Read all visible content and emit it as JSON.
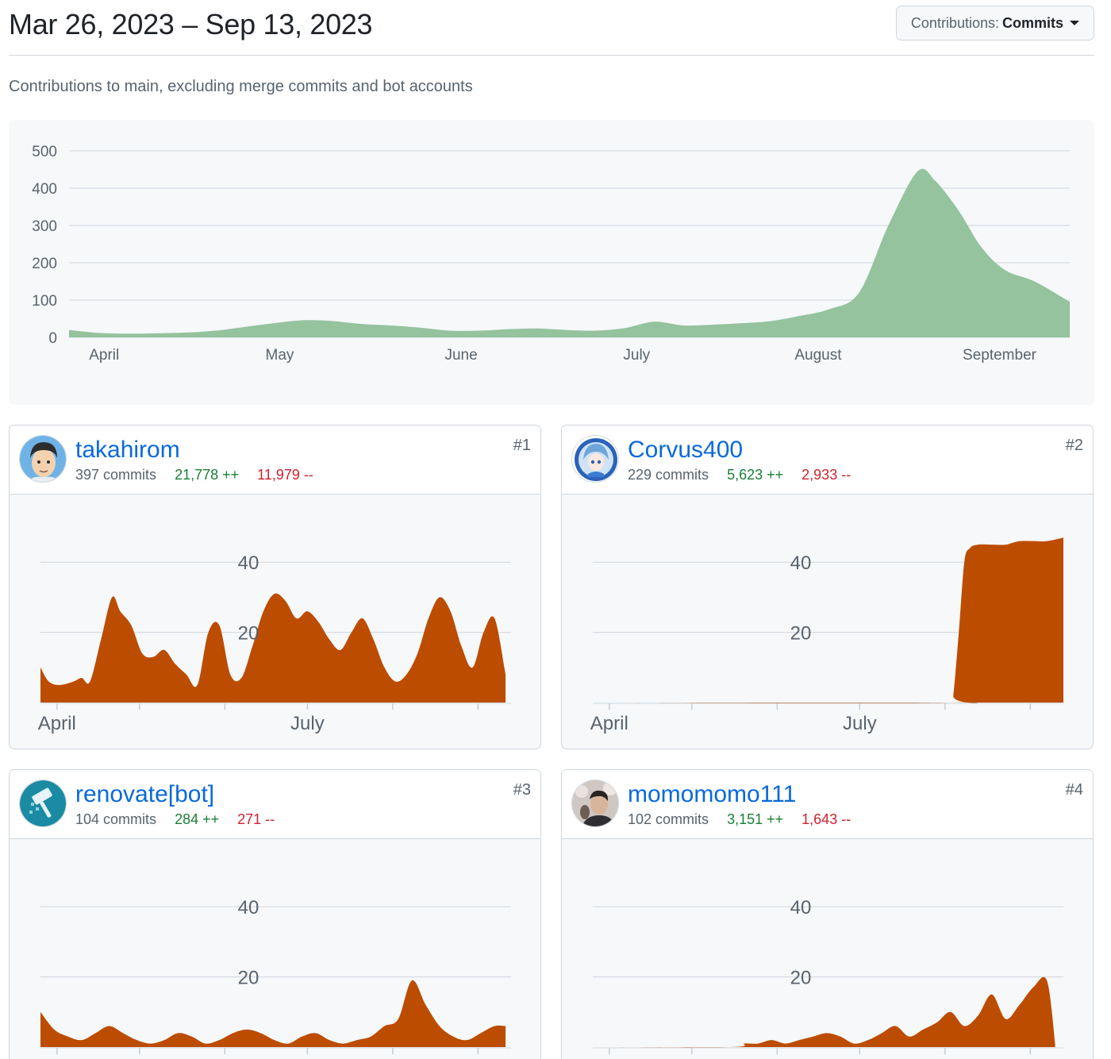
{
  "header": {
    "title": "Mar 26, 2023 – Sep 13, 2023",
    "dropdown_label": "Contributions:",
    "dropdown_value": "Commits"
  },
  "subtitle": "Contributions to main, excluding merge commits and bot accounts",
  "colors": {
    "main_area": "#94c39d",
    "user_area": "#bc4c00",
    "link": "#0969da",
    "additions": "#1a7f37",
    "deletions": "#cf222e"
  },
  "chart_data": [
    {
      "type": "area",
      "ylim": [
        0,
        500
      ],
      "yticks": [
        0,
        100,
        200,
        300,
        400,
        500
      ],
      "xlim": [
        0,
        171
      ],
      "xticks": [
        {
          "label": "April",
          "x": 6
        },
        {
          "label": "May",
          "x": 36
        },
        {
          "label": "June",
          "x": 67
        },
        {
          "label": "July",
          "x": 97
        },
        {
          "label": "August",
          "x": 128
        },
        {
          "label": "September",
          "x": 159
        }
      ],
      "grid": true,
      "x": [
        0,
        5,
        10,
        15,
        20,
        25,
        30,
        35,
        40,
        45,
        50,
        55,
        60,
        65,
        70,
        75,
        80,
        85,
        90,
        95,
        100,
        105,
        110,
        115,
        120,
        125,
        130,
        135,
        140,
        145,
        148,
        152,
        156,
        160,
        165,
        171
      ],
      "values": [
        20,
        12,
        10,
        11,
        13,
        18,
        28,
        38,
        46,
        44,
        36,
        32,
        26,
        18,
        18,
        22,
        24,
        20,
        18,
        25,
        42,
        32,
        34,
        38,
        44,
        58,
        76,
        120,
        300,
        445,
        420,
        340,
        240,
        180,
        150,
        95
      ]
    },
    {
      "type": "area",
      "ylim": [
        0,
        50
      ],
      "yticks": [
        20,
        40
      ],
      "xlim": [
        0,
        171
      ],
      "xticks": [
        {
          "label": "April",
          "x": 6
        },
        {
          "label": "",
          "x": 36
        },
        {
          "label": "",
          "x": 67
        },
        {
          "label": "July",
          "x": 97
        },
        {
          "label": "",
          "x": 128
        },
        {
          "label": "",
          "x": 159
        }
      ],
      "series": [
        {
          "x": [
            0,
            3,
            7,
            12,
            15,
            18,
            22,
            26,
            29,
            33,
            37,
            41,
            45,
            49,
            53,
            57,
            61,
            65,
            69,
            73,
            77,
            81,
            85,
            89,
            93,
            97,
            101,
            105,
            109,
            113,
            117,
            121,
            125,
            129,
            133,
            137,
            141,
            145,
            149,
            153,
            157,
            161,
            165,
            169
          ],
          "values": [
            10,
            6,
            5,
            6,
            7,
            6,
            18,
            30,
            26,
            22,
            14,
            13,
            15,
            11,
            8,
            5,
            20,
            22,
            8,
            7,
            16,
            26,
            31,
            29,
            24,
            26,
            23,
            18,
            15,
            20,
            24,
            18,
            10,
            6,
            8,
            14,
            24,
            30,
            26,
            16,
            10,
            20,
            24,
            8
          ]
        },
        {
          "x": [
            0,
            130,
            131,
            133,
            135,
            137,
            140,
            145,
            150,
            155,
            160,
            165,
            171
          ],
          "values": [
            0,
            0,
            2,
            20,
            40,
            44,
            45,
            45,
            45,
            46,
            46,
            46,
            47
          ]
        },
        {
          "x": [
            0,
            5,
            10,
            15,
            20,
            25,
            30,
            35,
            40,
            45,
            50,
            55,
            60,
            65,
            70,
            75,
            80,
            85,
            90,
            95,
            100,
            105,
            110,
            115,
            120,
            125,
            130,
            135,
            140,
            145,
            150,
            155,
            160,
            165,
            169
          ],
          "values": [
            10,
            5,
            3,
            2,
            4,
            6,
            4,
            2,
            1,
            2,
            4,
            3,
            1,
            2,
            4,
            5,
            4,
            2,
            1,
            3,
            4,
            2,
            1,
            2,
            3,
            6,
            8,
            19,
            12,
            6,
            3,
            2,
            4,
            6,
            6
          ]
        },
        {
          "x": [
            0,
            50,
            55,
            60,
            65,
            70,
            75,
            80,
            85,
            90,
            95,
            100,
            105,
            110,
            115,
            120,
            125,
            130,
            135,
            140,
            145,
            150,
            155,
            160,
            165,
            168
          ],
          "values": [
            0,
            0,
            1,
            1,
            2,
            1,
            2,
            3,
            4,
            3,
            1,
            2,
            4,
            6,
            3,
            5,
            7,
            10,
            6,
            9,
            15,
            8,
            12,
            17,
            19,
            1
          ]
        }
      ]
    }
  ],
  "contributors": [
    {
      "username": "takahirom",
      "commits": "397 commits",
      "additions": "21,778 ++",
      "deletions": "11,979 --",
      "rank": "#1",
      "avatar": "man-glasses-avatar"
    },
    {
      "username": "Corvus400",
      "commits": "229 commits",
      "additions": "5,623 ++",
      "deletions": "2,933 --",
      "rank": "#2",
      "avatar": "anime-character-avatar"
    },
    {
      "username": "renovate[bot]",
      "commits": "104 commits",
      "additions": "284 ++",
      "deletions": "271 --",
      "rank": "#3",
      "avatar": "paint-roller-avatar"
    },
    {
      "username": "momomomo111",
      "commits": "102 commits",
      "additions": "3,151 ++",
      "deletions": "1,643 --",
      "rank": "#4",
      "avatar": "person-photo-avatar"
    }
  ]
}
